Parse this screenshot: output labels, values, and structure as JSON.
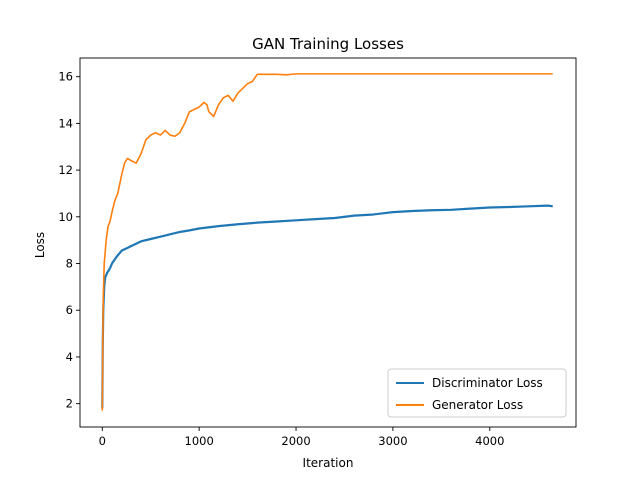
{
  "chart_data": {
    "type": "line",
    "title": "GAN Training Losses",
    "xlabel": "Iteration",
    "ylabel": "Loss",
    "xlim": [
      -230,
      4890
    ],
    "ylim": [
      1.0,
      16.8
    ],
    "x_ticks": [
      0,
      1000,
      2000,
      3000,
      4000
    ],
    "y_ticks": [
      2,
      4,
      6,
      8,
      10,
      12,
      14,
      16
    ],
    "grid": false,
    "legend_position": "lower-right",
    "series": [
      {
        "name": "Discriminator Loss",
        "color": "#1f77b4",
        "x": [
          0,
          5,
          10,
          20,
          30,
          50,
          80,
          100,
          150,
          200,
          250,
          300,
          400,
          500,
          600,
          700,
          800,
          900,
          1000,
          1200,
          1400,
          1600,
          1800,
          2000,
          2200,
          2400,
          2600,
          2800,
          3000,
          3200,
          3400,
          3600,
          3800,
          4000,
          4200,
          4400,
          4600,
          4650
        ],
        "y": [
          1.8,
          4.5,
          6.0,
          7.0,
          7.4,
          7.6,
          7.8,
          8.0,
          8.3,
          8.55,
          8.65,
          8.75,
          8.95,
          9.05,
          9.15,
          9.25,
          9.35,
          9.42,
          9.5,
          9.6,
          9.68,
          9.75,
          9.8,
          9.85,
          9.9,
          9.95,
          10.05,
          10.1,
          10.2,
          10.25,
          10.28,
          10.3,
          10.35,
          10.4,
          10.42,
          10.45,
          10.48,
          10.45
        ]
      },
      {
        "name": "Generator Loss",
        "color": "#ff7f0e",
        "x": [
          0,
          5,
          10,
          20,
          40,
          60,
          80,
          100,
          130,
          160,
          200,
          230,
          260,
          300,
          350,
          400,
          450,
          500,
          550,
          600,
          650,
          700,
          750,
          800,
          850,
          900,
          950,
          1000,
          1050,
          1080,
          1100,
          1150,
          1200,
          1250,
          1300,
          1350,
          1400,
          1450,
          1500,
          1550,
          1600,
          1700,
          1800,
          1900,
          2000,
          2500,
          3000,
          3500,
          4000,
          4500,
          4650
        ],
        "y": [
          1.7,
          4.5,
          6.5,
          8.0,
          9.0,
          9.6,
          9.8,
          10.2,
          10.7,
          11.0,
          11.8,
          12.3,
          12.5,
          12.4,
          12.3,
          12.7,
          13.3,
          13.5,
          13.6,
          13.5,
          13.7,
          13.5,
          13.45,
          13.6,
          14.0,
          14.5,
          14.6,
          14.7,
          14.9,
          14.8,
          14.5,
          14.3,
          14.8,
          15.1,
          15.2,
          14.95,
          15.3,
          15.5,
          15.7,
          15.8,
          16.1,
          16.1,
          16.1,
          16.08,
          16.12,
          16.12,
          16.12,
          16.12,
          16.12,
          16.12,
          16.12
        ]
      }
    ]
  }
}
